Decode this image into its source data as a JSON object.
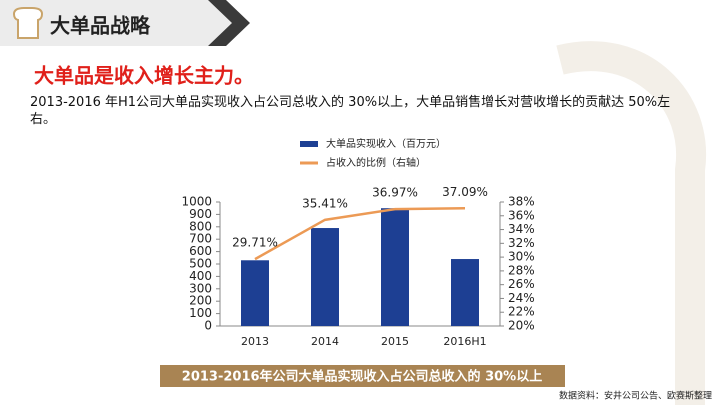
{
  "header": {
    "title": "大单品战略"
  },
  "headline": "大单品是收入增长主力。",
  "description": "2013-2016 年H1公司大单品实现收入占公司总收入的 30%以上，大单品销售增长对营收增长的贡献达 50%左右。",
  "chart_data": {
    "type": "bar",
    "categories": [
      "2013",
      "2014",
      "2015",
      "2016H1"
    ],
    "series": [
      {
        "name": "大单品实现收入（百万元）",
        "color": "#1d3f93",
        "values": [
          530,
          790,
          950,
          540
        ]
      },
      {
        "name": "占收入的比例（右轴）",
        "color": "#ec9a55",
        "type": "line",
        "axis": "y2",
        "values": [
          29.71,
          35.41,
          36.97,
          37.09
        ],
        "value_labels": [
          "29.71%",
          "35.41%",
          "36.97%",
          "37.09%"
        ]
      }
    ],
    "ylim": [
      0,
      1000
    ],
    "yticks": [
      0,
      100,
      200,
      300,
      400,
      500,
      600,
      700,
      800,
      900,
      1000
    ],
    "y2lim": [
      20,
      38
    ],
    "y2ticks": [
      {
        "value": 20,
        "label": "20%"
      },
      {
        "value": 22,
        "label": "22%"
      },
      {
        "value": 24,
        "label": "24%"
      },
      {
        "value": 26,
        "label": "26%"
      },
      {
        "value": 28,
        "label": "28%"
      },
      {
        "value": 30,
        "label": "30%"
      },
      {
        "value": 32,
        "label": "32%"
      },
      {
        "value": 34,
        "label": "34%"
      },
      {
        "value": 36,
        "label": "36%"
      },
      {
        "value": 38,
        "label": "38%"
      }
    ]
  },
  "banner": "2013-2016年公司大单品实现收入占公司总收入的 30%以上",
  "source": "数据资料：安井公司公告、欧赛斯整理"
}
